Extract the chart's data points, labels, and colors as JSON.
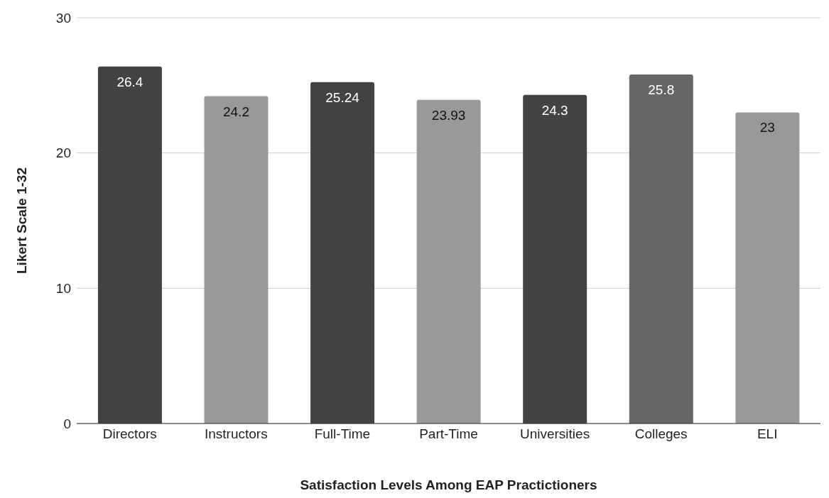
{
  "chart_data": {
    "type": "bar",
    "xlabel": "Satisfaction Levels Among EAP Practictioners",
    "ylabel": "Likert Scale 1-32",
    "categories": [
      "Directors",
      "Instructors",
      "Full-Time",
      "Part-Time",
      "Universities",
      "Colleges",
      "ELI"
    ],
    "values": [
      26.4,
      24.2,
      25.24,
      23.93,
      24.3,
      25.8,
      23
    ],
    "colors": [
      "#434343",
      "#999999",
      "#434343",
      "#999999",
      "#434343",
      "#666666",
      "#999999"
    ],
    "ylim": [
      0,
      30
    ],
    "yticks": [
      0,
      10,
      20,
      30
    ],
    "grid": "y",
    "data_labels": true
  }
}
